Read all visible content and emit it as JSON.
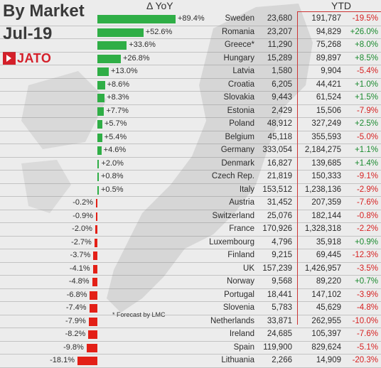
{
  "header": {
    "title_line1": "By Market",
    "title_line2": "Jul-19",
    "logo_text": "JATO",
    "yoy_label": "Δ YoY",
    "ytd_label": "YTD"
  },
  "footnote": "* Forecast by LMC",
  "colors": {
    "positive": "#2fae46",
    "negative": "#e32017",
    "up_text": "#1a8a2e",
    "down_text": "#d61f1f",
    "brand": "#d4202a"
  },
  "chart_data": {
    "type": "bar",
    "orientation": "horizontal",
    "rows": [
      {
        "country": "Sweden",
        "month": "23,680",
        "yoy": 89.4,
        "yoy_label": "+89.4%",
        "ytd": "191,787",
        "ytd_chg": "-19.5%"
      },
      {
        "country": "Romania",
        "month": "23,207",
        "yoy": 52.6,
        "yoy_label": "+52.6%",
        "ytd": "94,829",
        "ytd_chg": "+26.0%"
      },
      {
        "country": "Greece*",
        "month": "11,290",
        "yoy": 33.6,
        "yoy_label": "+33.6%",
        "ytd": "75,268",
        "ytd_chg": "+8.0%"
      },
      {
        "country": "Hungary",
        "month": "15,289",
        "yoy": 26.8,
        "yoy_label": "+26.8%",
        "ytd": "89,897",
        "ytd_chg": "+8.5%"
      },
      {
        "country": "Latvia",
        "month": "1,580",
        "yoy": 13.0,
        "yoy_label": "+13.0%",
        "ytd": "9,904",
        "ytd_chg": "-5.4%"
      },
      {
        "country": "Croatia",
        "month": "6,205",
        "yoy": 8.6,
        "yoy_label": "+8.6%",
        "ytd": "44,421",
        "ytd_chg": "+1.0%"
      },
      {
        "country": "Slovakia",
        "month": "9,443",
        "yoy": 8.3,
        "yoy_label": "+8.3%",
        "ytd": "61,524",
        "ytd_chg": "+1.5%"
      },
      {
        "country": "Estonia",
        "month": "2,429",
        "yoy": 7.7,
        "yoy_label": "+7.7%",
        "ytd": "15,506",
        "ytd_chg": "-7.9%"
      },
      {
        "country": "Poland",
        "month": "48,912",
        "yoy": 5.7,
        "yoy_label": "+5.7%",
        "ytd": "327,249",
        "ytd_chg": "+2.5%"
      },
      {
        "country": "Belgium",
        "month": "45,118",
        "yoy": 5.4,
        "yoy_label": "+5.4%",
        "ytd": "355,593",
        "ytd_chg": "-5.0%"
      },
      {
        "country": "Germany",
        "month": "333,054",
        "yoy": 4.6,
        "yoy_label": "+4.6%",
        "ytd": "2,184,275",
        "ytd_chg": "+1.1%"
      },
      {
        "country": "Denmark",
        "month": "16,827",
        "yoy": 2.0,
        "yoy_label": "+2.0%",
        "ytd": "139,685",
        "ytd_chg": "+1.4%"
      },
      {
        "country": "Czech Rep.",
        "month": "21,819",
        "yoy": 0.8,
        "yoy_label": "+0.8%",
        "ytd": "150,333",
        "ytd_chg": "-9.1%"
      },
      {
        "country": "Italy",
        "month": "153,512",
        "yoy": 0.5,
        "yoy_label": "+0.5%",
        "ytd": "1,238,136",
        "ytd_chg": "-2.9%"
      },
      {
        "country": "Austria",
        "month": "31,452",
        "yoy": -0.2,
        "yoy_label": "-0.2%",
        "ytd": "207,359",
        "ytd_chg": "-7.6%"
      },
      {
        "country": "Switzerland",
        "month": "25,076",
        "yoy": -0.9,
        "yoy_label": "-0.9%",
        "ytd": "182,144",
        "ytd_chg": "-0.8%"
      },
      {
        "country": "France",
        "month": "170,926",
        "yoy": -2.0,
        "yoy_label": "-2.0%",
        "ytd": "1,328,318",
        "ytd_chg": "-2.2%"
      },
      {
        "country": "Luxembourg",
        "month": "4,796",
        "yoy": -2.7,
        "yoy_label": "-2.7%",
        "ytd": "35,918",
        "ytd_chg": "+0.9%"
      },
      {
        "country": "Finland",
        "month": "9,215",
        "yoy": -3.7,
        "yoy_label": "-3.7%",
        "ytd": "69,445",
        "ytd_chg": "-12.3%"
      },
      {
        "country": "UK",
        "month": "157,239",
        "yoy": -4.1,
        "yoy_label": "-4.1%",
        "ytd": "1,426,957",
        "ytd_chg": "-3.5%"
      },
      {
        "country": "Norway",
        "month": "9,568",
        "yoy": -4.8,
        "yoy_label": "-4.8%",
        "ytd": "89,220",
        "ytd_chg": "+0.7%"
      },
      {
        "country": "Portugal",
        "month": "18,441",
        "yoy": -6.8,
        "yoy_label": "-6.8%",
        "ytd": "147,102",
        "ytd_chg": "-3.9%"
      },
      {
        "country": "Slovenia",
        "month": "5,783",
        "yoy": -7.4,
        "yoy_label": "-7.4%",
        "ytd": "45,629",
        "ytd_chg": "-4.8%"
      },
      {
        "country": "Netherlands",
        "month": "33,871",
        "yoy": -7.9,
        "yoy_label": "-7.9%",
        "ytd": "262,955",
        "ytd_chg": "-10.0%"
      },
      {
        "country": "Ireland",
        "month": "24,685",
        "yoy": -8.2,
        "yoy_label": "-8.2%",
        "ytd": "105,397",
        "ytd_chg": "-7.6%"
      },
      {
        "country": "Spain",
        "month": "119,900",
        "yoy": -9.8,
        "yoy_label": "-9.8%",
        "ytd": "829,624",
        "ytd_chg": "-5.1%"
      },
      {
        "country": "Lithuania",
        "month": "2,266",
        "yoy": -18.1,
        "yoy_label": "-18.1%",
        "ytd": "14,909",
        "ytd_chg": "-20.3%"
      }
    ]
  }
}
